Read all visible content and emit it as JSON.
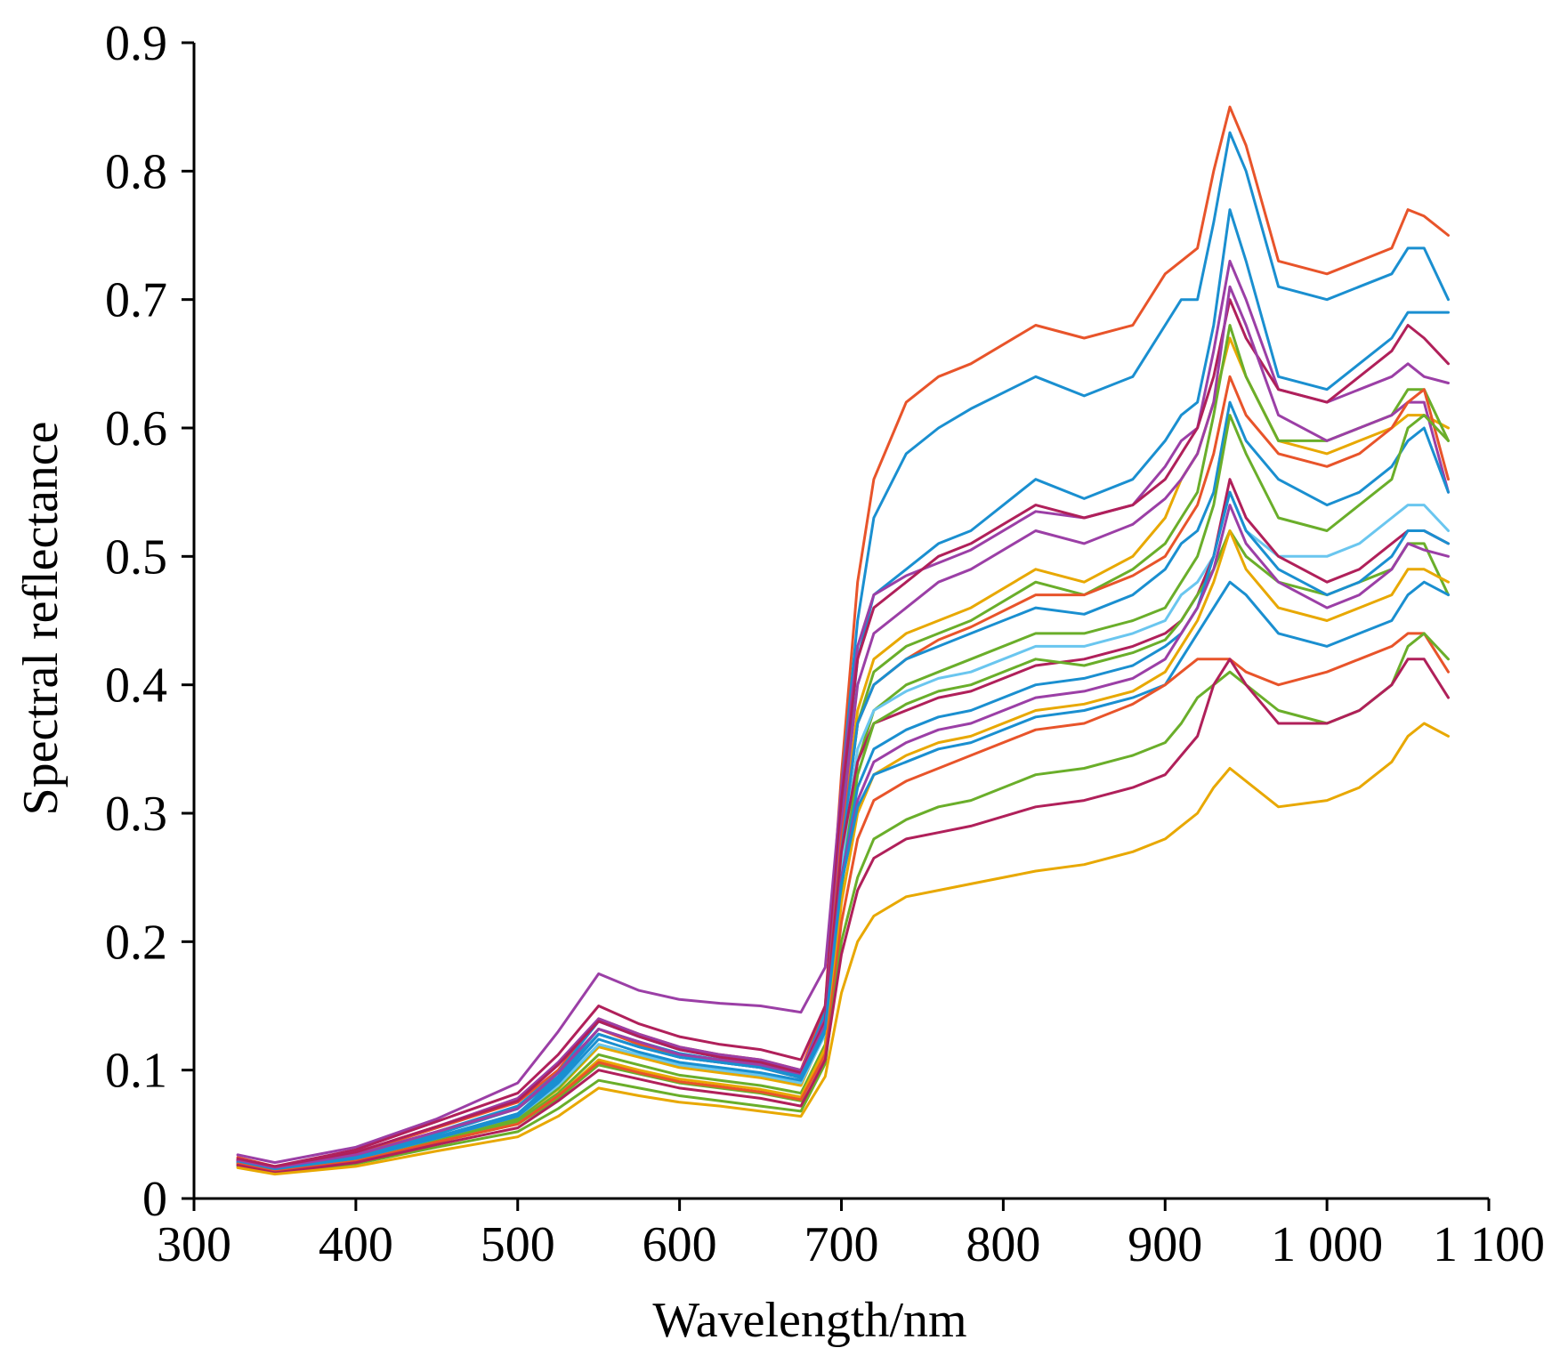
{
  "chart_data": {
    "type": "line",
    "title": "",
    "xlabel": "Wavelength/nm",
    "ylabel": "Spectral reflectance",
    "xlim": [
      300,
      1100
    ],
    "ylim": [
      0,
      0.9
    ],
    "x_ticks": [
      300,
      400,
      500,
      600,
      700,
      800,
      900,
      1000,
      1100
    ],
    "x_tick_labels": [
      "300",
      "400",
      "500",
      "600",
      "700",
      "800",
      "900",
      "1 000",
      "1 100"
    ],
    "y_ticks": [
      0,
      0.1,
      0.2,
      0.3,
      0.4,
      0.5,
      0.6,
      0.7,
      0.8,
      0.9
    ],
    "y_tick_labels": [
      "0",
      "0.1",
      "0.2",
      "0.3",
      "0.4",
      "0.5",
      "0.6",
      "0.7",
      "0.8",
      "0.9"
    ],
    "grid": false,
    "legend": "none",
    "x": [
      327,
      350,
      400,
      450,
      500,
      525,
      550,
      575,
      600,
      625,
      650,
      675,
      690,
      700,
      710,
      720,
      740,
      760,
      780,
      820,
      850,
      880,
      900,
      910,
      920,
      930,
      940,
      950,
      970,
      1000,
      1020,
      1040,
      1050,
      1060,
      1075
    ],
    "series": [
      {
        "color": "#e8542a",
        "values": [
          0.032,
          0.025,
          0.035,
          0.055,
          0.075,
          0.1,
          0.14,
          0.128,
          0.118,
          0.112,
          0.108,
          0.1,
          0.15,
          0.33,
          0.48,
          0.56,
          0.62,
          0.64,
          0.65,
          0.68,
          0.67,
          0.68,
          0.72,
          0.73,
          0.74,
          0.8,
          0.85,
          0.82,
          0.73,
          0.72,
          0.73,
          0.74,
          0.77,
          0.765,
          0.75
        ]
      },
      {
        "color": "#1a8fd0",
        "values": [
          0.03,
          0.024,
          0.034,
          0.052,
          0.072,
          0.098,
          0.138,
          0.126,
          0.116,
          0.11,
          0.106,
          0.098,
          0.145,
          0.32,
          0.45,
          0.53,
          0.58,
          0.6,
          0.615,
          0.64,
          0.625,
          0.64,
          0.68,
          0.7,
          0.7,
          0.76,
          0.83,
          0.8,
          0.71,
          0.7,
          0.71,
          0.72,
          0.74,
          0.74,
          0.7
        ]
      },
      {
        "color": "#1a8fd0",
        "values": [
          0.029,
          0.023,
          0.033,
          0.05,
          0.07,
          0.095,
          0.132,
          0.122,
          0.113,
          0.108,
          0.104,
          0.096,
          0.14,
          0.3,
          0.42,
          0.47,
          0.49,
          0.51,
          0.52,
          0.56,
          0.545,
          0.56,
          0.59,
          0.61,
          0.62,
          0.68,
          0.77,
          0.73,
          0.64,
          0.63,
          0.65,
          0.67,
          0.69,
          0.69,
          0.69
        ]
      },
      {
        "color": "#9b3fa6",
        "values": [
          0.034,
          0.028,
          0.04,
          0.062,
          0.09,
          0.13,
          0.175,
          0.162,
          0.155,
          0.152,
          0.15,
          0.145,
          0.18,
          0.32,
          0.43,
          0.47,
          0.485,
          0.495,
          0.505,
          0.535,
          0.53,
          0.54,
          0.57,
          0.59,
          0.6,
          0.66,
          0.73,
          0.7,
          0.63,
          0.62,
          0.63,
          0.64,
          0.65,
          0.64,
          0.635
        ]
      },
      {
        "color": "#b0205a",
        "values": [
          0.031,
          0.025,
          0.038,
          0.06,
          0.082,
          0.112,
          0.15,
          0.136,
          0.126,
          0.12,
          0.116,
          0.108,
          0.15,
          0.31,
          0.42,
          0.46,
          0.48,
          0.5,
          0.51,
          0.54,
          0.53,
          0.54,
          0.56,
          0.58,
          0.6,
          0.64,
          0.7,
          0.67,
          0.63,
          0.62,
          0.64,
          0.66,
          0.68,
          0.67,
          0.65
        ]
      },
      {
        "color": "#e8a800",
        "values": [
          0.027,
          0.022,
          0.03,
          0.046,
          0.062,
          0.085,
          0.118,
          0.11,
          0.102,
          0.098,
          0.094,
          0.088,
          0.13,
          0.28,
          0.38,
          0.42,
          0.44,
          0.45,
          0.46,
          0.49,
          0.48,
          0.5,
          0.53,
          0.56,
          0.58,
          0.62,
          0.67,
          0.64,
          0.59,
          0.58,
          0.59,
          0.6,
          0.61,
          0.61,
          0.6
        ]
      },
      {
        "color": "#6aae2a",
        "values": [
          0.028,
          0.022,
          0.03,
          0.046,
          0.062,
          0.086,
          0.12,
          0.112,
          0.104,
          0.1,
          0.096,
          0.09,
          0.13,
          0.27,
          0.37,
          0.41,
          0.43,
          0.44,
          0.45,
          0.48,
          0.47,
          0.49,
          0.51,
          0.53,
          0.55,
          0.61,
          0.68,
          0.64,
          0.59,
          0.59,
          0.6,
          0.61,
          0.63,
          0.63,
          0.59
        ]
      },
      {
        "color": "#9b3fa6",
        "values": [
          0.03,
          0.024,
          0.036,
          0.056,
          0.078,
          0.106,
          0.14,
          0.128,
          0.118,
          0.112,
          0.108,
          0.1,
          0.14,
          0.29,
          0.4,
          0.44,
          0.46,
          0.48,
          0.49,
          0.52,
          0.51,
          0.525,
          0.545,
          0.56,
          0.58,
          0.62,
          0.71,
          0.68,
          0.61,
          0.59,
          0.6,
          0.61,
          0.62,
          0.62,
          0.55
        ]
      },
      {
        "color": "#e8542a",
        "values": [
          0.029,
          0.023,
          0.034,
          0.052,
          0.07,
          0.098,
          0.132,
          0.12,
          0.11,
          0.106,
          0.102,
          0.094,
          0.135,
          0.28,
          0.37,
          0.4,
          0.42,
          0.435,
          0.445,
          0.47,
          0.47,
          0.485,
          0.5,
          0.52,
          0.54,
          0.58,
          0.64,
          0.61,
          0.58,
          0.57,
          0.58,
          0.6,
          0.62,
          0.63,
          0.56
        ]
      },
      {
        "color": "#1a8fd0",
        "values": [
          0.028,
          0.023,
          0.032,
          0.048,
          0.066,
          0.092,
          0.128,
          0.118,
          0.11,
          0.106,
          0.102,
          0.094,
          0.135,
          0.27,
          0.37,
          0.4,
          0.42,
          0.43,
          0.44,
          0.46,
          0.455,
          0.47,
          0.49,
          0.51,
          0.52,
          0.55,
          0.62,
          0.59,
          0.56,
          0.54,
          0.55,
          0.57,
          0.59,
          0.6,
          0.55
        ]
      },
      {
        "color": "#6aae2a",
        "values": [
          0.027,
          0.022,
          0.03,
          0.046,
          0.06,
          0.082,
          0.112,
          0.104,
          0.096,
          0.092,
          0.088,
          0.082,
          0.12,
          0.25,
          0.34,
          0.38,
          0.4,
          0.41,
          0.42,
          0.44,
          0.44,
          0.45,
          0.46,
          0.48,
          0.5,
          0.54,
          0.61,
          0.58,
          0.53,
          0.52,
          0.54,
          0.56,
          0.6,
          0.61,
          0.59
        ]
      },
      {
        "color": "#6ac6ef",
        "values": [
          0.028,
          0.022,
          0.031,
          0.047,
          0.064,
          0.088,
          0.12,
          0.112,
          0.104,
          0.1,
          0.096,
          0.09,
          0.128,
          0.26,
          0.35,
          0.38,
          0.395,
          0.405,
          0.41,
          0.43,
          0.43,
          0.44,
          0.45,
          0.47,
          0.48,
          0.5,
          0.55,
          0.52,
          0.5,
          0.5,
          0.51,
          0.53,
          0.54,
          0.54,
          0.52
        ]
      },
      {
        "color": "#b0205a",
        "values": [
          0.03,
          0.024,
          0.036,
          0.056,
          0.076,
          0.104,
          0.138,
          0.126,
          0.116,
          0.11,
          0.106,
          0.098,
          0.138,
          0.27,
          0.34,
          0.37,
          0.38,
          0.39,
          0.395,
          0.415,
          0.42,
          0.43,
          0.44,
          0.45,
          0.47,
          0.5,
          0.56,
          0.53,
          0.5,
          0.48,
          0.49,
          0.51,
          0.52,
          0.52,
          0.51
        ]
      },
      {
        "color": "#6aae2a",
        "values": [
          0.026,
          0.021,
          0.029,
          0.044,
          0.058,
          0.078,
          0.104,
          0.097,
          0.09,
          0.086,
          0.082,
          0.076,
          0.115,
          0.24,
          0.33,
          0.37,
          0.385,
          0.395,
          0.4,
          0.42,
          0.415,
          0.425,
          0.435,
          0.45,
          0.47,
          0.49,
          0.52,
          0.5,
          0.48,
          0.47,
          0.48,
          0.49,
          0.51,
          0.51,
          0.47
        ]
      },
      {
        "color": "#1a8fd0",
        "values": [
          0.028,
          0.022,
          0.031,
          0.047,
          0.064,
          0.09,
          0.124,
          0.114,
          0.106,
          0.102,
          0.098,
          0.092,
          0.13,
          0.25,
          0.32,
          0.35,
          0.365,
          0.375,
          0.38,
          0.4,
          0.405,
          0.415,
          0.43,
          0.44,
          0.46,
          0.5,
          0.55,
          0.52,
          0.49,
          0.47,
          0.48,
          0.5,
          0.52,
          0.52,
          0.51
        ]
      },
      {
        "color": "#9b3fa6",
        "values": [
          0.029,
          0.023,
          0.034,
          0.052,
          0.07,
          0.098,
          0.132,
          0.122,
          0.112,
          0.108,
          0.104,
          0.096,
          0.135,
          0.25,
          0.31,
          0.34,
          0.355,
          0.365,
          0.37,
          0.39,
          0.395,
          0.405,
          0.42,
          0.44,
          0.46,
          0.49,
          0.54,
          0.51,
          0.48,
          0.46,
          0.47,
          0.49,
          0.51,
          0.505,
          0.5
        ]
      },
      {
        "color": "#e8a800",
        "values": [
          0.027,
          0.021,
          0.029,
          0.044,
          0.058,
          0.08,
          0.108,
          0.1,
          0.093,
          0.089,
          0.085,
          0.079,
          0.117,
          0.23,
          0.3,
          0.33,
          0.345,
          0.355,
          0.36,
          0.38,
          0.385,
          0.395,
          0.41,
          0.43,
          0.45,
          0.48,
          0.52,
          0.49,
          0.46,
          0.45,
          0.46,
          0.47,
          0.49,
          0.49,
          0.48
        ]
      },
      {
        "color": "#1a8fd0",
        "values": [
          0.028,
          0.022,
          0.032,
          0.048,
          0.066,
          0.094,
          0.128,
          0.118,
          0.11,
          0.106,
          0.102,
          0.095,
          0.132,
          0.245,
          0.305,
          0.33,
          0.34,
          0.35,
          0.355,
          0.375,
          0.38,
          0.39,
          0.4,
          0.42,
          0.44,
          0.46,
          0.48,
          0.47,
          0.44,
          0.43,
          0.44,
          0.45,
          0.47,
          0.48,
          0.47
        ]
      },
      {
        "color": "#e8542a",
        "values": [
          0.027,
          0.021,
          0.029,
          0.044,
          0.058,
          0.08,
          0.106,
          0.098,
          0.091,
          0.087,
          0.083,
          0.077,
          0.112,
          0.215,
          0.28,
          0.31,
          0.325,
          0.335,
          0.345,
          0.365,
          0.37,
          0.385,
          0.4,
          0.41,
          0.42,
          0.42,
          0.42,
          0.41,
          0.4,
          0.41,
          0.42,
          0.43,
          0.44,
          0.44,
          0.41
        ]
      },
      {
        "color": "#6aae2a",
        "values": [
          0.025,
          0.02,
          0.027,
          0.04,
          0.052,
          0.07,
          0.092,
          0.086,
          0.08,
          0.076,
          0.072,
          0.068,
          0.105,
          0.2,
          0.25,
          0.28,
          0.295,
          0.305,
          0.31,
          0.33,
          0.335,
          0.345,
          0.355,
          0.37,
          0.39,
          0.4,
          0.41,
          0.4,
          0.38,
          0.37,
          0.38,
          0.4,
          0.43,
          0.44,
          0.42
        ]
      },
      {
        "color": "#b0205a",
        "values": [
          0.026,
          0.02,
          0.028,
          0.042,
          0.055,
          0.076,
          0.1,
          0.093,
          0.086,
          0.082,
          0.078,
          0.072,
          0.108,
          0.19,
          0.24,
          0.265,
          0.28,
          0.285,
          0.29,
          0.305,
          0.31,
          0.32,
          0.33,
          0.345,
          0.36,
          0.4,
          0.42,
          0.4,
          0.37,
          0.37,
          0.38,
          0.4,
          0.42,
          0.42,
          0.39
        ]
      },
      {
        "color": "#e8a800",
        "values": [
          0.024,
          0.019,
          0.025,
          0.037,
          0.048,
          0.064,
          0.086,
          0.08,
          0.075,
          0.072,
          0.068,
          0.064,
          0.095,
          0.16,
          0.2,
          0.22,
          0.235,
          0.24,
          0.245,
          0.255,
          0.26,
          0.27,
          0.28,
          0.29,
          0.3,
          0.32,
          0.335,
          0.325,
          0.305,
          0.31,
          0.32,
          0.34,
          0.36,
          0.37,
          0.36
        ]
      }
    ]
  }
}
